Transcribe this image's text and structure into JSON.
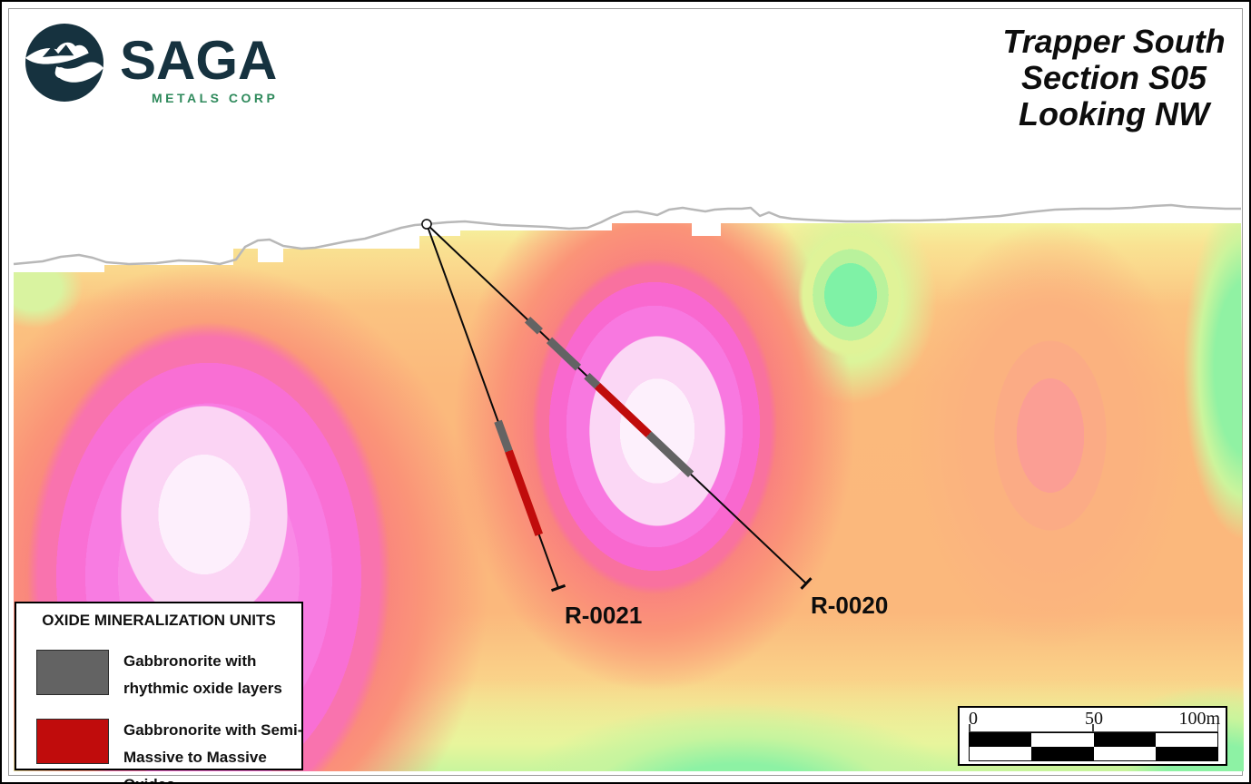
{
  "logo": {
    "company": "SAGA",
    "tagline": "METALS CORP",
    "navy": "#16323f",
    "green": "#2f8a5c"
  },
  "title": {
    "line1": "Trapper South",
    "line2": "Section S05",
    "line3": "Looking NW"
  },
  "drillholes": [
    {
      "id": "R-0021",
      "collar": [
        468,
        245
      ],
      "eoh": [
        613,
        646
      ],
      "intervals": [
        {
          "unit": "rhythmic",
          "from": 231,
          "to": 266
        },
        {
          "unit": "semi_massive",
          "from": 266,
          "to": 364
        }
      ]
    },
    {
      "id": "R-0020",
      "collar": [
        468,
        245
      ],
      "eoh": [
        886,
        641
      ],
      "intervals": [
        {
          "unit": "rhythmic",
          "from": 153,
          "to": 172
        },
        {
          "unit": "rhythmic",
          "from": 186,
          "to": 230
        },
        {
          "unit": "rhythmic",
          "from": 243,
          "to": 259
        },
        {
          "unit": "semi_massive",
          "from": 259,
          "to": 337
        },
        {
          "unit": "rhythmic",
          "from": 337,
          "to": 401
        }
      ]
    }
  ],
  "legend": {
    "title": "OXIDE MINERALIZATION UNITS",
    "unit_colors": {
      "rhythmic": "#636363",
      "semi_massive": "#c00c0c"
    },
    "items": [
      {
        "unit": "rhythmic",
        "label": "Gabbronorite with rhythmic oxide layers",
        "color": "#636363"
      },
      {
        "unit": "semi_massive",
        "label": "Gabbronorite with Semi-Massive to Massive Oxides",
        "color": "#c00c0c"
      }
    ]
  },
  "scalebar": {
    "start": "0",
    "mid": "50",
    "end": "100m"
  }
}
